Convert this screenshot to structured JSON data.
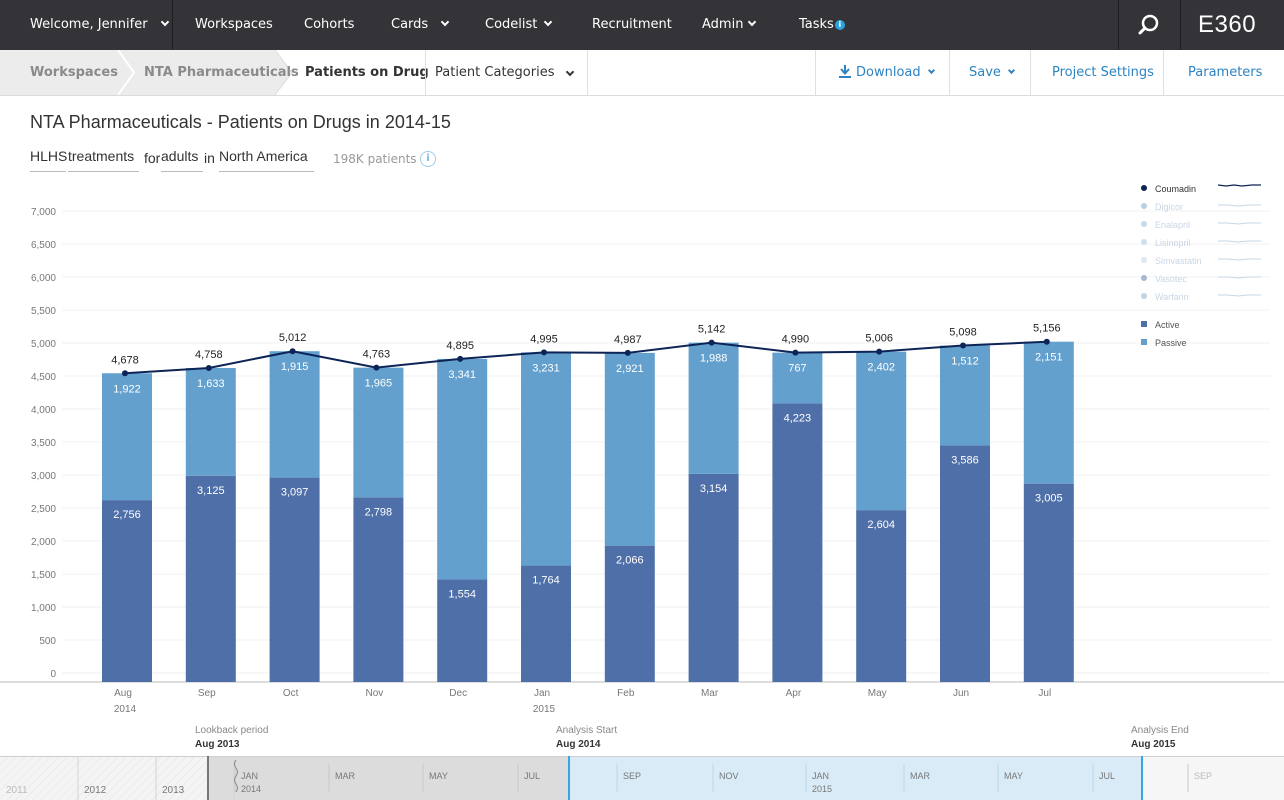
{
  "topnav": {
    "welcome": "Welcome, Jennifer",
    "items": [
      "Workspaces",
      "Cohorts",
      "Cards",
      "Codelist",
      "Recruitment",
      "Admin",
      "Tasks"
    ],
    "tasks_badge": "i",
    "brand": "E360"
  },
  "subnav": {
    "breadcrumbs": [
      "Workspaces",
      "NTA Pharmaceuticals",
      "Patients on Drug"
    ],
    "category_select": "Patient Categories",
    "download": "Download",
    "save": "Save",
    "project_settings": "Project Settings",
    "parameters": "Parameters"
  },
  "page": {
    "title": "NTA Pharmaceuticals - Patients on Drugs in 2014-15",
    "filters": {
      "condition": "HLHS",
      "treatment": "treatments",
      "for": "for",
      "population": "adults",
      "in": "in",
      "region": "North America"
    },
    "patient_count": "198K patients",
    "info_icon": "i"
  },
  "chart_data": {
    "type": "bar",
    "stacked": true,
    "categories": [
      "Aug",
      "Sep",
      "Oct",
      "Nov",
      "Dec",
      "Jan",
      "Feb",
      "Mar",
      "Apr",
      "May",
      "Jun",
      "Jul"
    ],
    "year_labels": [
      {
        "index": 0,
        "label": "2014"
      },
      {
        "index": 5,
        "label": "2015"
      }
    ],
    "ylim": [
      0,
      7000
    ],
    "yticks": [
      0,
      500,
      1000,
      1500,
      2000,
      2500,
      3000,
      3500,
      4000,
      4500,
      5000,
      5500,
      6000,
      6500,
      7000
    ],
    "ytick_labels": [
      "0",
      "500",
      "1,000",
      "1,500",
      "2,000",
      "2,500",
      "3,000",
      "3,500",
      "4,000",
      "4,500",
      "5,000",
      "5,500",
      "6,000",
      "6,500",
      "7,000"
    ],
    "series": [
      {
        "name": "Active",
        "color": "#4f6fa8",
        "values": [
          2756,
          3125,
          3097,
          2798,
          1554,
          1764,
          2066,
          3154,
          4223,
          2604,
          3586,
          3005
        ],
        "labels": [
          "2,756",
          "3,125",
          "3,097",
          "2,798",
          "1,554",
          "1,764",
          "2,066",
          "3,154",
          "4,223",
          "2,604",
          "3,586",
          "3,005"
        ]
      },
      {
        "name": "Passive",
        "color": "#63a0cd",
        "values": [
          1922,
          1633,
          1915,
          1965,
          3341,
          3231,
          2921,
          1988,
          767,
          2402,
          1512,
          2151
        ],
        "labels": [
          "1,922",
          "1,633",
          "1,915",
          "1,965",
          "3,341",
          "3,231",
          "2,921",
          "1,988",
          "767",
          "2,402",
          "1,512",
          "2,151"
        ]
      }
    ],
    "line": {
      "name": "Coumadin",
      "color": "#0d2456",
      "values": [
        4678,
        4758,
        5012,
        4763,
        4895,
        4995,
        4987,
        5142,
        4990,
        5006,
        5098,
        5156
      ],
      "labels": [
        "4,678",
        "4,758",
        "5,012",
        "4,763",
        "4,895",
        "4,995",
        "4,987",
        "5,142",
        "4,990",
        "5,006",
        "5,098",
        "5,156"
      ]
    },
    "legend": {
      "placement": "top-right",
      "drugs": [
        {
          "name": "Coumadin",
          "color": "#0d2456",
          "active": true
        },
        {
          "name": "Digicor",
          "color": "#b8cfe6",
          "active": false
        },
        {
          "name": "Enalapril",
          "color": "#c3d8ea",
          "active": false
        },
        {
          "name": "Lisinopril",
          "color": "#cfe0ee",
          "active": false
        },
        {
          "name": "Simvastatin",
          "color": "#dce9f3",
          "active": false
        },
        {
          "name": "Vasotec",
          "color": "#a8b8d4",
          "active": false
        },
        {
          "name": "Warfarin",
          "color": "#c4cfe0",
          "active": false
        }
      ],
      "categories": [
        {
          "name": "Active",
          "color": "#4f6fa8"
        },
        {
          "name": "Passive",
          "color": "#63a0cd"
        }
      ]
    }
  },
  "periods": {
    "lookback_label": "Lookback period",
    "lookback_date": "Aug 2013",
    "start_label": "Analysis Start",
    "start_date": "Aug 2014",
    "end_label": "Analysis End",
    "end_date": "Aug 2015"
  },
  "timeline": {
    "years": [
      "2011",
      "2012",
      "2013"
    ],
    "months": [
      "JAN",
      "MAR",
      "MAY",
      "JUL",
      "SEP",
      "NOV",
      "JAN",
      "MAR",
      "MAY",
      "JUL",
      "SEP"
    ],
    "month_years": [
      {
        "month_index": 0,
        "year": "2014"
      },
      {
        "month_index": 6,
        "year": "2015"
      }
    ]
  }
}
